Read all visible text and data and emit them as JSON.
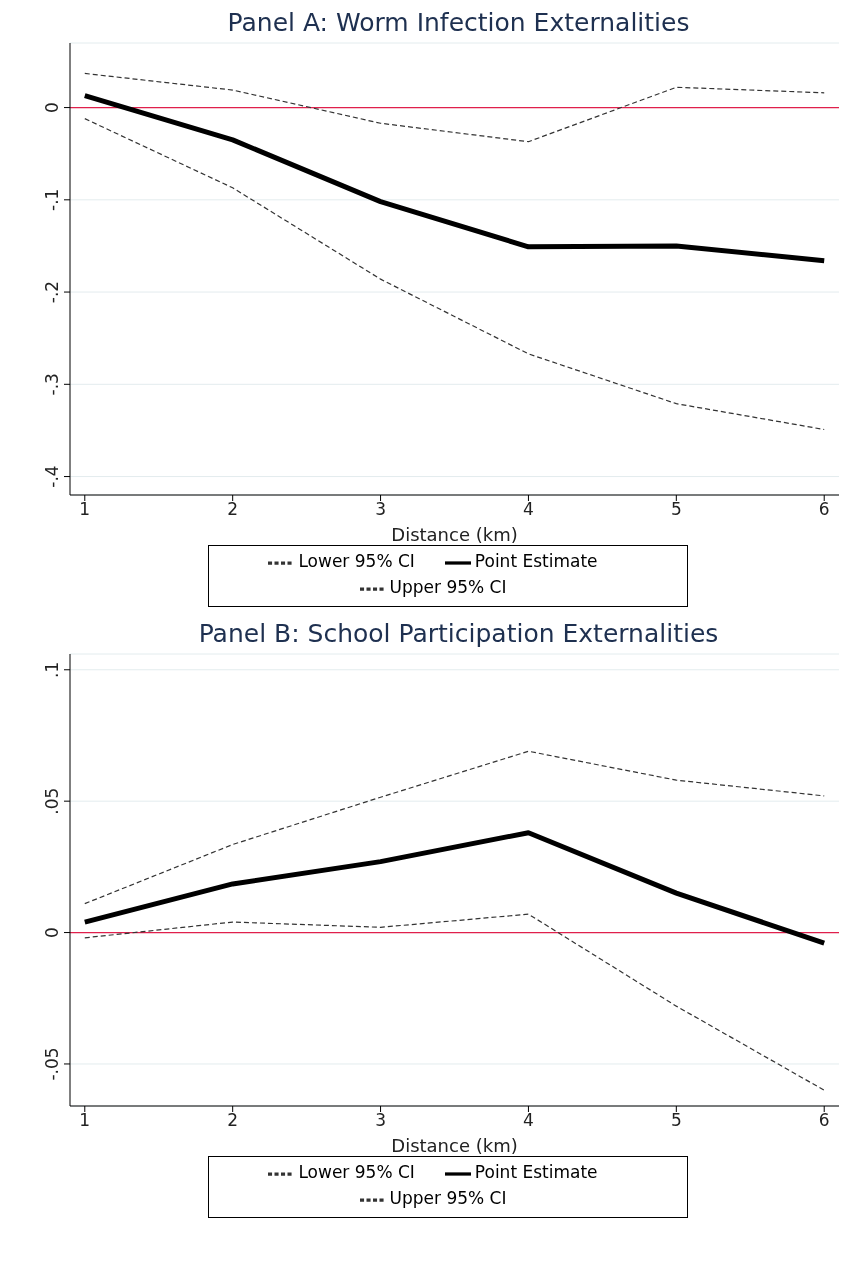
{
  "chart_data": [
    {
      "type": "line",
      "title": "Panel A: Worm Infection Externalities",
      "xlabel": "Distance (km)",
      "x": [
        1,
        2,
        3,
        4,
        5,
        6
      ],
      "xlim": [
        0.9,
        6.1
      ],
      "xticks": [
        1,
        2,
        3,
        4,
        5,
        6
      ],
      "ylim": [
        -0.42,
        0.07
      ],
      "yticks": [
        {
          "value": -0.4,
          "label": "-.4"
        },
        {
          "value": -0.3,
          "label": "-.3"
        },
        {
          "value": -0.2,
          "label": "-.2"
        },
        {
          "value": -0.1,
          "label": "-.1"
        },
        0
      ],
      "grid": "y",
      "legend": "bottom",
      "marker": "none",
      "ref_lines": [
        {
          "axis": "y",
          "value": 0,
          "color": "#e0204c"
        }
      ],
      "series": [
        {
          "name": "Lower 95% CI",
          "color": "#333333",
          "line_style": "dashed",
          "values": [
            -0.012,
            -0.087,
            -0.186,
            -0.267,
            -0.321,
            -0.349
          ]
        },
        {
          "name": "Point Estimate",
          "color": "#000000",
          "line_style": "solid",
          "values": [
            0.013,
            -0.035,
            -0.102,
            -0.151,
            -0.15,
            -0.166
          ]
        },
        {
          "name": "Upper 95% CI",
          "color": "#333333",
          "line_style": "dashed",
          "values": [
            0.037,
            0.019,
            -0.017,
            -0.037,
            0.022,
            0.016
          ]
        }
      ]
    },
    {
      "type": "line",
      "title": "Panel B: School Participation Externalities",
      "xlabel": "Distance (km)",
      "x": [
        1,
        2,
        3,
        4,
        5,
        6
      ],
      "xlim": [
        0.9,
        6.1
      ],
      "xticks": [
        1,
        2,
        3,
        4,
        5,
        6
      ],
      "ylim": [
        -0.066,
        0.106
      ],
      "yticks": [
        {
          "value": -0.05,
          "label": "-.05"
        },
        0,
        {
          "value": 0.05,
          "label": ".05"
        },
        {
          "value": 0.1,
          "label": ".1"
        }
      ],
      "grid": "y",
      "legend": "bottom",
      "marker": "none",
      "ref_lines": [
        {
          "axis": "y",
          "value": 0,
          "color": "#e0204c"
        }
      ],
      "series": [
        {
          "name": "Lower 95% CI",
          "color": "#333333",
          "line_style": "dashed",
          "values": [
            -0.002,
            0.004,
            0.002,
            0.007,
            -0.028,
            -0.06
          ]
        },
        {
          "name": "Point Estimate",
          "color": "#000000",
          "line_style": "solid",
          "values": [
            0.004,
            0.0185,
            0.027,
            0.038,
            0.015,
            -0.004
          ]
        },
        {
          "name": "Upper 95% CI",
          "color": "#333333",
          "line_style": "dashed",
          "values": [
            0.011,
            0.0335,
            0.0515,
            0.069,
            0.058,
            0.052
          ]
        }
      ]
    }
  ]
}
